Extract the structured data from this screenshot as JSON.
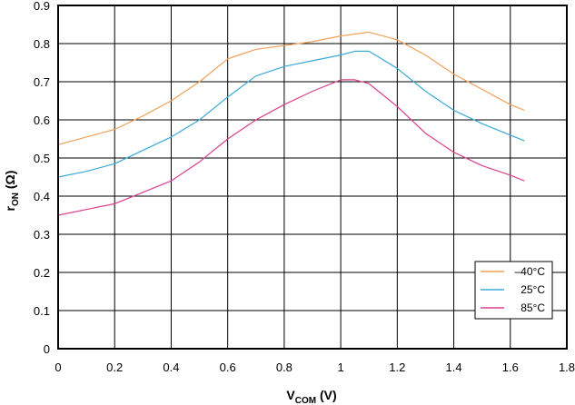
{
  "chart_data": {
    "type": "line",
    "title": "",
    "xlabel": {
      "main": "V",
      "sub": "COM",
      "unit": " (V)"
    },
    "ylabel": {
      "main": "r",
      "sub": "ON",
      "unit": " (Ω)"
    },
    "xlim": [
      0,
      1.8
    ],
    "ylim": [
      0,
      0.9
    ],
    "x_ticks": [
      0,
      0.2,
      0.4,
      0.6,
      0.8,
      1,
      1.2,
      1.4,
      1.6,
      1.8
    ],
    "x_tick_labels": [
      "0",
      "0.2",
      "0.4",
      "0.6",
      "0.8",
      "1",
      "1.2",
      "1.4",
      "1.6",
      "1.8"
    ],
    "y_ticks": [
      0,
      0.1,
      0.2,
      0.3,
      0.4,
      0.5,
      0.6,
      0.7,
      0.8,
      0.9
    ],
    "y_tick_labels": [
      "0",
      "0.1",
      "0.2",
      "0.3",
      "0.4",
      "0.5",
      "0.6",
      "0.7",
      "0.8",
      "0.9"
    ],
    "grid": true,
    "legend_position": "bottom-right",
    "x": [
      0,
      0.1,
      0.2,
      0.3,
      0.4,
      0.5,
      0.6,
      0.7,
      0.8,
      0.9,
      1.0,
      1.05,
      1.1,
      1.2,
      1.3,
      1.4,
      1.5,
      1.6,
      1.65
    ],
    "series": [
      {
        "name": "–40°C",
        "color": "#f0a15a",
        "values": [
          0.535,
          0.555,
          0.575,
          0.61,
          0.65,
          0.7,
          0.76,
          0.785,
          0.795,
          0.805,
          0.82,
          0.825,
          0.83,
          0.81,
          0.77,
          0.72,
          0.68,
          0.64,
          0.625
        ]
      },
      {
        "name": "25°C",
        "color": "#3aaad8",
        "values": [
          0.45,
          0.465,
          0.485,
          0.52,
          0.555,
          0.6,
          0.66,
          0.715,
          0.74,
          0.755,
          0.77,
          0.78,
          0.78,
          0.735,
          0.675,
          0.625,
          0.59,
          0.56,
          0.545
        ]
      },
      {
        "name": "85°C",
        "color": "#d9408f",
        "values": [
          0.35,
          0.365,
          0.38,
          0.41,
          0.44,
          0.49,
          0.55,
          0.6,
          0.64,
          0.675,
          0.705,
          0.705,
          0.695,
          0.635,
          0.565,
          0.515,
          0.48,
          0.455,
          0.44
        ]
      }
    ]
  }
}
